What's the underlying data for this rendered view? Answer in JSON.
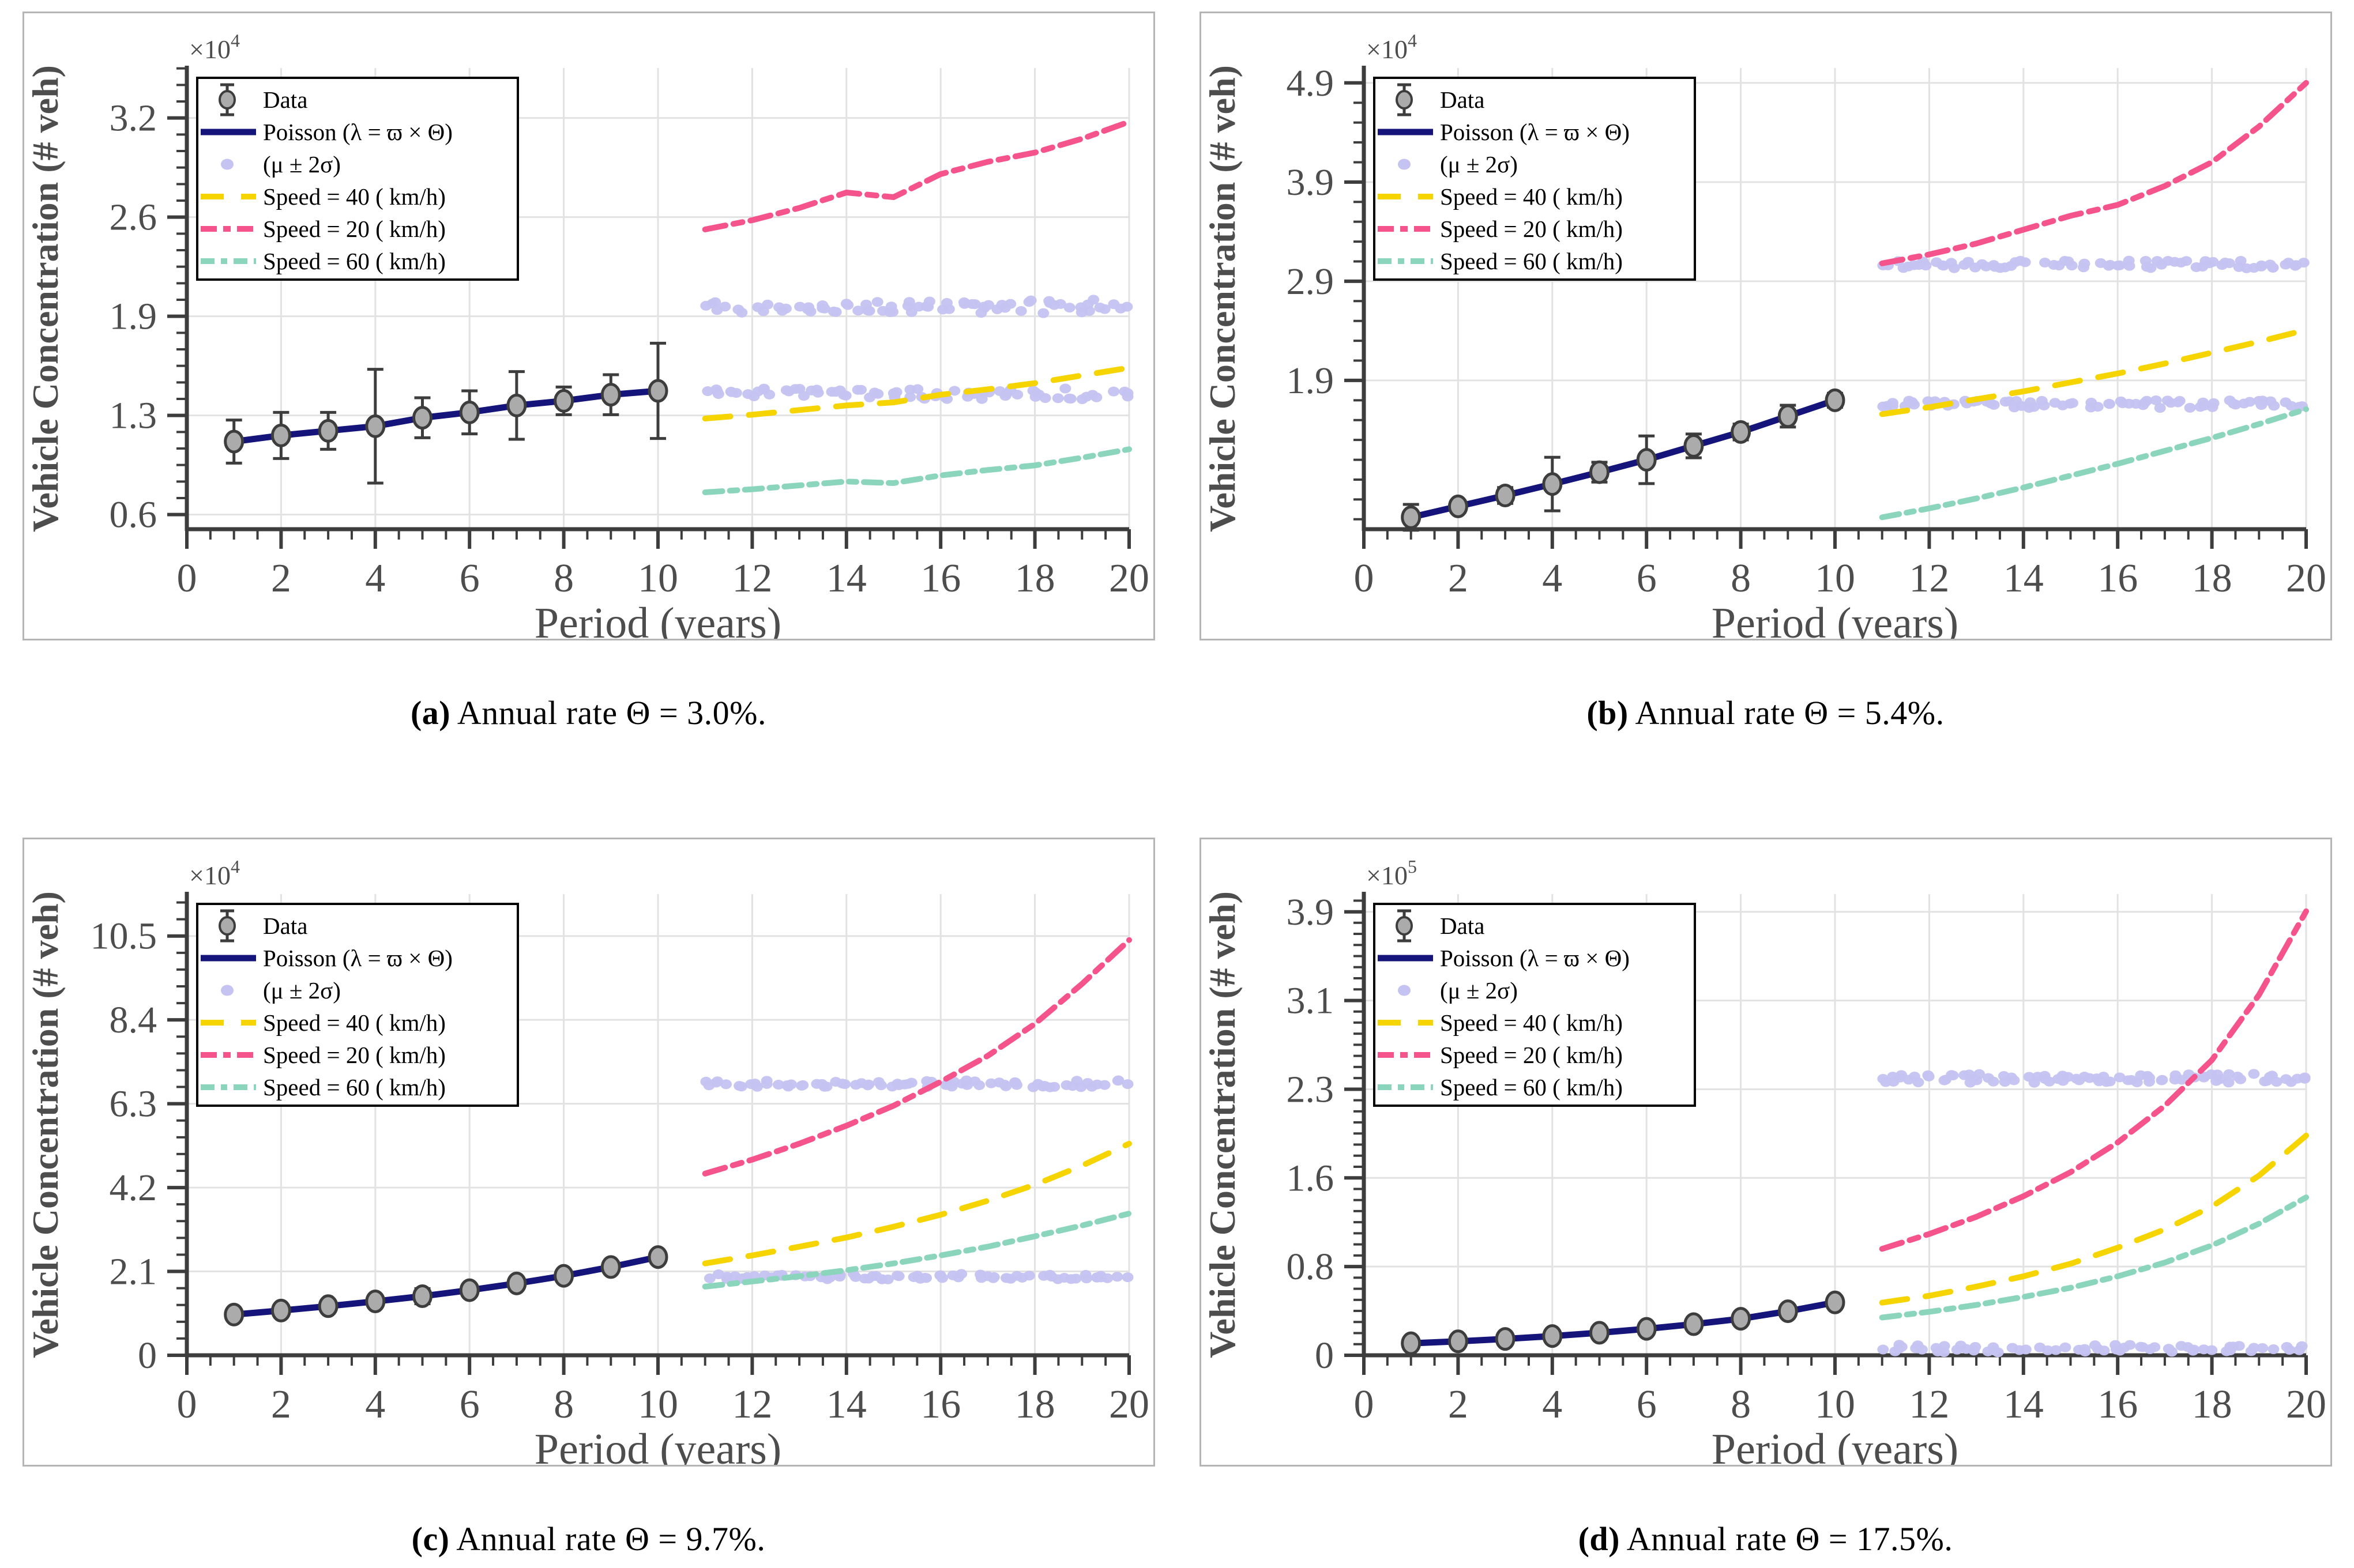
{
  "figure": {
    "xlabel": "Period (years)",
    "ylabel": "Vehicle Concentration (# veh)"
  },
  "palette": {
    "navy": "#14147A",
    "pink": "#F4538C",
    "yellow": "#F5D400",
    "teal": "#8CD5BD",
    "lavender": "#C5C3F1",
    "marker_fill": "#ABABAB",
    "axis": "#3D3D3D",
    "grid": "#E2E2E2",
    "text": "#4D4D4D",
    "panel_border": "#B5B5B5"
  },
  "legend": {
    "entries": [
      {
        "label": "Data",
        "glyph": "errorbar",
        "color": "#ABABAB",
        "dash": null
      },
      {
        "label": "Poisson (λ = ϖ × Θ)",
        "glyph": "line",
        "color": "#14147A",
        "dash": null
      },
      {
        "label": "(μ ± 2σ)",
        "glyph": "dot",
        "color": "#C5C3F1",
        "dash": null
      },
      {
        "label": "Speed  =  40  ( km/h)",
        "glyph": "dash",
        "color": "#F5D400",
        "dash": "40 30"
      },
      {
        "label": "Speed  =  20  ( km/h)",
        "glyph": "dash",
        "color": "#F4538C",
        "dash": "28 11 13 11"
      },
      {
        "label": "Speed  =  60  ( km/h)",
        "glyph": "dash",
        "color": "#8CD5BD",
        "dash": "24 11 11 11"
      }
    ]
  },
  "chart_data": [
    {
      "key": "a",
      "type": "line",
      "caption_bold": "(a)",
      "caption_rest": " Annual rate Θ = 3.0%.",
      "multiplier": {
        "base": "×10",
        "exp": "4"
      },
      "xlim": [
        0,
        20
      ],
      "xticks": [
        0,
        2,
        4,
        6,
        8,
        10,
        12,
        14,
        16,
        18,
        20
      ],
      "x_minor_step": 0.5,
      "ylim": [
        0.55,
        3.55
      ],
      "ytick_values": [
        0.645,
        1.29,
        1.935,
        2.58,
        3.225
      ],
      "ytick_labels": [
        "0.6",
        "1.3",
        "1.9",
        "2.6",
        "3.2"
      ],
      "y_minor_step": 0.1075,
      "data": {
        "x": [
          1,
          2,
          3,
          4,
          5,
          6,
          7,
          8,
          9,
          10
        ],
        "y": [
          1.12,
          1.16,
          1.19,
          1.22,
          1.275,
          1.31,
          1.355,
          1.385,
          1.425,
          1.45
        ],
        "err": [
          0.14,
          0.15,
          0.12,
          0.37,
          0.13,
          0.14,
          0.22,
          0.09,
          0.13,
          0.31
        ]
      },
      "forecast_x": [
        11,
        12,
        13,
        14,
        15,
        16,
        17,
        18,
        19,
        20
      ],
      "series": [
        {
          "name": "Speed = 40 ( km/h)",
          "key": "speed40",
          "values": [
            1.27,
            1.295,
            1.325,
            1.355,
            1.375,
            1.425,
            1.46,
            1.5,
            1.55,
            1.6
          ]
        },
        {
          "name": "Speed = 20 ( km/h)",
          "key": "speed20",
          "values": [
            2.5,
            2.56,
            2.64,
            2.74,
            2.71,
            2.86,
            2.94,
            3.0,
            3.09,
            3.2
          ]
        },
        {
          "name": "Speed = 60 ( km/h)",
          "key": "speed60",
          "values": [
            0.79,
            0.81,
            0.835,
            0.86,
            0.85,
            0.9,
            0.935,
            0.965,
            1.015,
            1.07
          ]
        }
      ],
      "bands": {
        "upper": {
          "mean": 2.0,
          "amp": 0.045,
          "seed": 101,
          "n": 80
        },
        "lower": {
          "mean": 1.43,
          "amp": 0.035,
          "seed": 102,
          "n": 80
        }
      }
    },
    {
      "key": "b",
      "type": "line",
      "caption_bold": "(b)",
      "caption_rest": " Annual rate Θ = 5.4%.",
      "multiplier": {
        "base": "×10",
        "exp": "4"
      },
      "xlim": [
        0,
        20
      ],
      "xticks": [
        0,
        2,
        4,
        6,
        8,
        10,
        12,
        14,
        16,
        18,
        20
      ],
      "x_minor_step": 0.5,
      "ylim": [
        0.4,
        5.05
      ],
      "ytick_values": [
        1.9,
        2.9,
        3.9,
        4.9
      ],
      "ytick_labels": [
        "1.9",
        "2.9",
        "3.9",
        "4.9"
      ],
      "y_minor_step": 0.2,
      "data": {
        "x": [
          1,
          2,
          3,
          4,
          5,
          6,
          7,
          8,
          9,
          10
        ],
        "y": [
          0.52,
          0.63,
          0.74,
          0.855,
          0.975,
          1.1,
          1.24,
          1.38,
          1.54,
          1.7
        ],
        "err": [
          0.13,
          0.06,
          0.08,
          0.27,
          0.1,
          0.24,
          0.12,
          0.08,
          0.11,
          0.07
        ]
      },
      "forecast_x": [
        11,
        12,
        13,
        14,
        15,
        16,
        17,
        18,
        19,
        20
      ],
      "series": [
        {
          "name": "Speed = 40 ( km/h)",
          "key": "speed40",
          "values": [
            1.56,
            1.63,
            1.71,
            1.79,
            1.88,
            1.97,
            2.07,
            2.18,
            2.29,
            2.41
          ]
        },
        {
          "name": "Speed = 20 ( km/h)",
          "key": "speed20",
          "values": [
            3.08,
            3.17,
            3.28,
            3.42,
            3.56,
            3.67,
            3.86,
            4.1,
            4.46,
            4.9
          ]
        },
        {
          "name": "Speed = 60 ( km/h)",
          "key": "speed60",
          "values": [
            0.52,
            0.61,
            0.71,
            0.82,
            0.94,
            1.06,
            1.19,
            1.32,
            1.46,
            1.61
          ]
        }
      ],
      "bands": {
        "upper": {
          "mean": 3.07,
          "amp": 0.04,
          "seed": 201,
          "n": 80
        },
        "lower": {
          "mean": 1.66,
          "amp": 0.04,
          "seed": 202,
          "n": 80
        }
      }
    },
    {
      "key": "c",
      "type": "line",
      "caption_bold": "(c)",
      "caption_rest": " Annual rate Θ = 9.7%.",
      "multiplier": {
        "base": "×10",
        "exp": "4"
      },
      "xlim": [
        0,
        20
      ],
      "xticks": [
        0,
        2,
        4,
        6,
        8,
        10,
        12,
        14,
        16,
        18,
        20
      ],
      "x_minor_step": 0.5,
      "ylim": [
        0,
        11.55
      ],
      "ytick_values": [
        0,
        2.1,
        4.2,
        6.3,
        8.4,
        10.5
      ],
      "ytick_labels": [
        "0",
        "2.1",
        "4.2",
        "6.3",
        "8.4",
        "10.5"
      ],
      "y_minor_step": 0.42,
      "data": {
        "x": [
          1,
          2,
          3,
          4,
          5,
          6,
          7,
          8,
          9,
          10
        ],
        "y": [
          1.02,
          1.12,
          1.23,
          1.35,
          1.48,
          1.63,
          1.8,
          1.99,
          2.21,
          2.46
        ],
        "err": [
          0.13,
          0.11,
          0.11,
          0.13,
          0.19,
          0.13,
          0.11,
          0.11,
          0.09,
          0.11
        ]
      },
      "forecast_x": [
        11,
        12,
        13,
        14,
        15,
        16,
        17,
        18,
        19,
        20
      ],
      "series": [
        {
          "name": "Speed = 40 ( km/h)",
          "key": "speed40",
          "values": [
            2.3,
            2.5,
            2.72,
            2.95,
            3.22,
            3.52,
            3.87,
            4.27,
            4.75,
            5.3
          ]
        },
        {
          "name": "Speed = 20 ( km/h)",
          "key": "speed20",
          "values": [
            4.55,
            4.9,
            5.3,
            5.75,
            6.25,
            6.85,
            7.5,
            8.3,
            9.3,
            10.4
          ]
        },
        {
          "name": "Speed = 60 ( km/h)",
          "key": "speed60",
          "values": [
            1.72,
            1.85,
            1.98,
            2.13,
            2.3,
            2.5,
            2.72,
            2.98,
            3.25,
            3.55
          ]
        }
      ],
      "bands": {
        "upper": {
          "mean": 6.8,
          "amp": 0.09,
          "seed": 301,
          "n": 80
        },
        "lower": {
          "mean": 1.97,
          "amp": 0.07,
          "seed": 302,
          "n": 80
        }
      }
    },
    {
      "key": "d",
      "type": "line",
      "caption_bold": "(d)",
      "caption_rest": " Annual rate Θ = 17.5%.",
      "multiplier": {
        "base": "×10",
        "exp": "5"
      },
      "xlim": [
        0,
        20
      ],
      "xticks": [
        0,
        2,
        4,
        6,
        8,
        10,
        12,
        14,
        16,
        18,
        20
      ],
      "x_minor_step": 0.5,
      "ylim": [
        0,
        4.03
      ],
      "ytick_values": [
        0,
        0.775,
        1.55,
        2.325,
        3.1,
        3.875
      ],
      "ytick_labels": [
        "0",
        "0.8",
        "1.6",
        "2.3",
        "3.1",
        "3.9"
      ],
      "y_minor_step": 0.0969,
      "data": {
        "x": [
          1,
          2,
          3,
          4,
          5,
          6,
          7,
          8,
          9,
          10
        ],
        "y": [
          0.105,
          0.122,
          0.143,
          0.168,
          0.197,
          0.231,
          0.272,
          0.319,
          0.385,
          0.462
        ],
        "err": [
          0.03,
          0.028,
          0.03,
          0.032,
          0.034,
          0.036,
          0.038,
          0.04,
          0.045,
          0.048
        ]
      },
      "forecast_x": [
        11,
        12,
        13,
        14,
        15,
        16,
        17,
        18,
        19,
        20
      ],
      "series": [
        {
          "name": "Speed = 40 ( km/h)",
          "key": "speed40",
          "values": [
            0.46,
            0.52,
            0.6,
            0.69,
            0.8,
            0.94,
            1.1,
            1.3,
            1.57,
            1.92
          ]
        },
        {
          "name": "Speed = 20 ( km/h)",
          "key": "speed20",
          "values": [
            0.93,
            1.06,
            1.21,
            1.39,
            1.6,
            1.86,
            2.18,
            2.58,
            3.15,
            3.88
          ]
        },
        {
          "name": "Speed = 60 ( km/h)",
          "key": "speed60",
          "values": [
            0.33,
            0.38,
            0.44,
            0.51,
            0.59,
            0.69,
            0.81,
            0.96,
            1.15,
            1.38
          ]
        }
      ],
      "bands": {
        "upper": {
          "mean": 2.42,
          "amp": 0.04,
          "seed": 401,
          "n": 85
        },
        "lower": {
          "mean": 0.06,
          "amp": 0.035,
          "seed": 402,
          "n": 70
        }
      }
    }
  ]
}
